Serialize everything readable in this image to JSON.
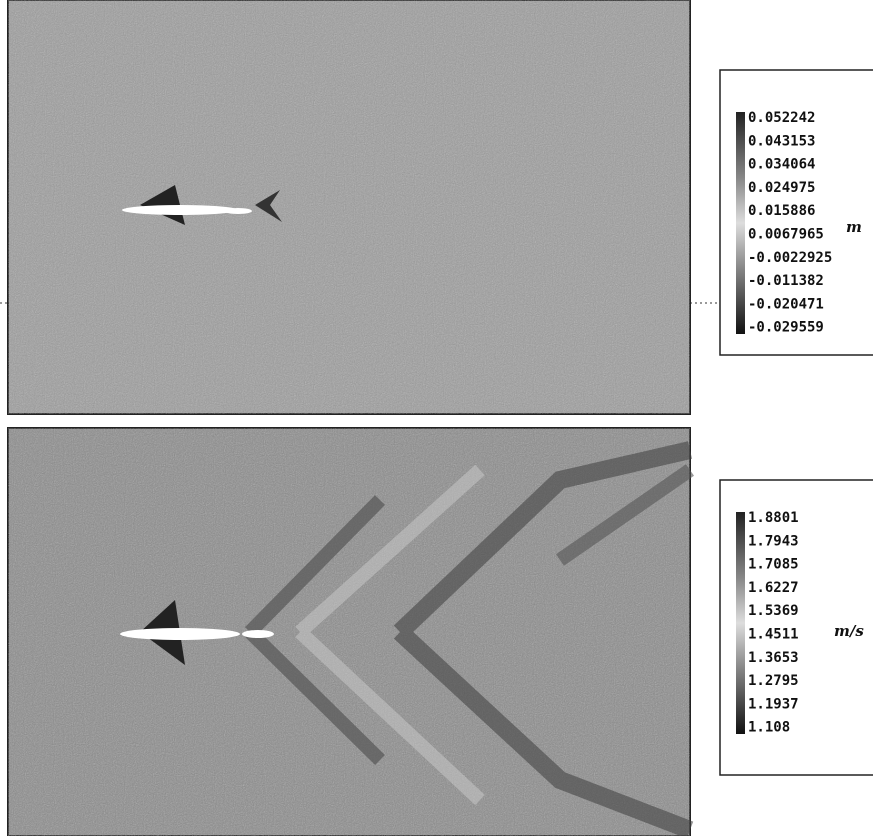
{
  "panels": [
    {
      "unit": "m",
      "colorbar_labels": [
        "0.052242",
        "0.043153",
        "0.034064",
        "0.024975",
        "0.015886",
        "0.0067965",
        "-0.0022925",
        "-0.011382",
        "-0.020471",
        "-0.029559"
      ]
    },
    {
      "unit": "m/s",
      "colorbar_labels": [
        "1.8801",
        "1.7943",
        "1.7085",
        "1.6227",
        "1.5369",
        "1.4511",
        "1.3653",
        "1.2795",
        "1.1937",
        "1.108"
      ]
    }
  ]
}
